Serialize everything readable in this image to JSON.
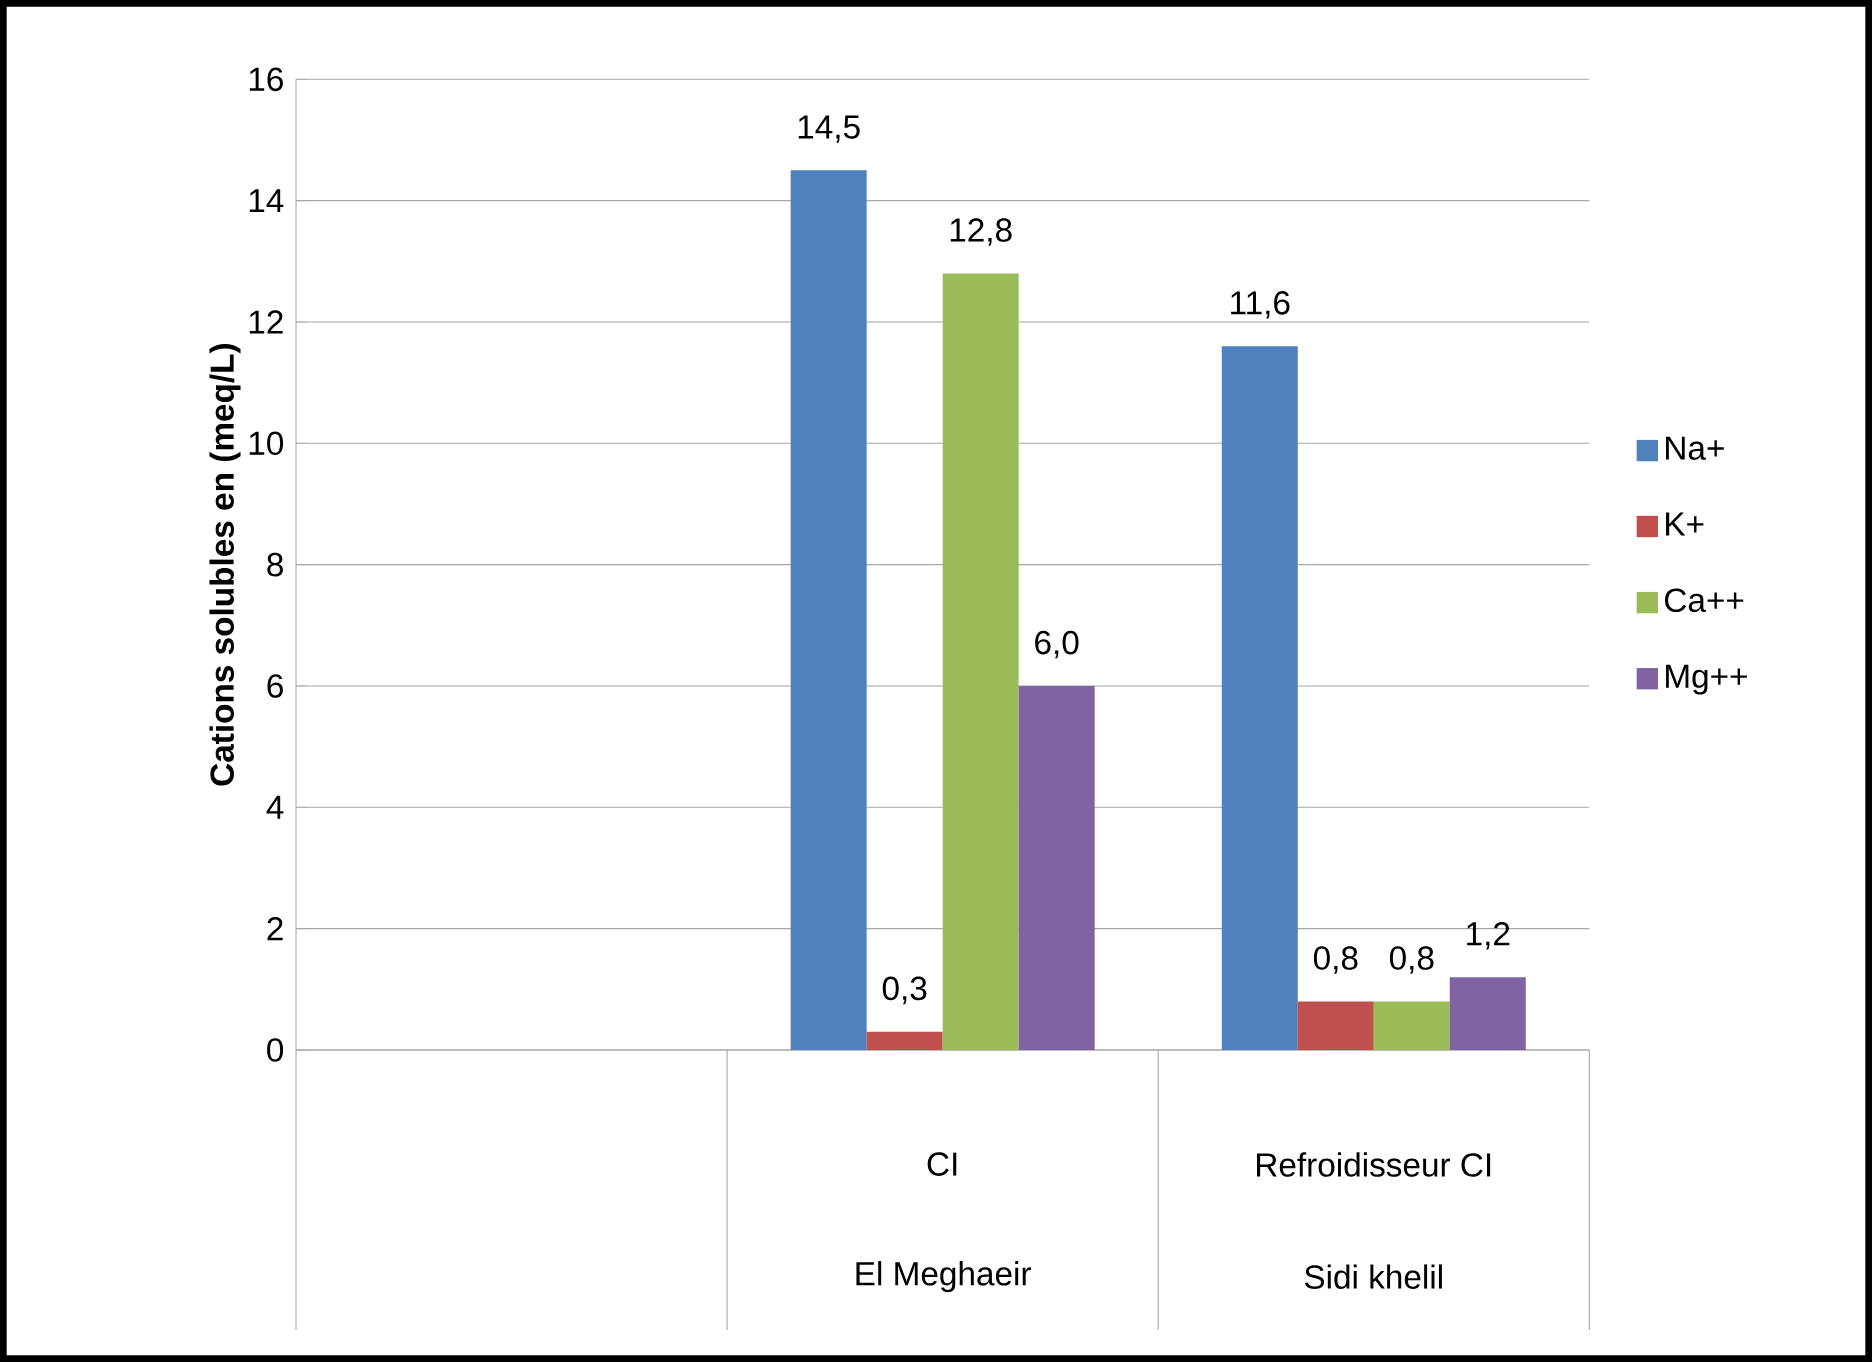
{
  "chart_data": {
    "type": "bar",
    "ylabel": "Cations solubles en (meq/L)",
    "categories": [
      null,
      "CI",
      "Refroidisseur CI"
    ],
    "annotations": [
      "El Meghaeir",
      "Sidi khelil"
    ],
    "series": [
      {
        "name": "Na+",
        "color": "#4f81bd",
        "values": [
          null,
          14.5,
          11.6
        ],
        "value_labels": [
          null,
          "14,5",
          "11,6"
        ]
      },
      {
        "name": "K+",
        "color": "#c0504d",
        "values": [
          null,
          0.3,
          0.8
        ],
        "value_labels": [
          null,
          "0,3",
          "0,8"
        ]
      },
      {
        "name": "Ca++",
        "color": "#9bbb59",
        "values": [
          null,
          12.8,
          0.8
        ],
        "value_labels": [
          null,
          "12,8",
          "0,8"
        ]
      },
      {
        "name": "Mg++",
        "color": "#8064a2",
        "values": [
          null,
          6.0,
          1.2
        ],
        "value_labels": [
          null,
          "6,0",
          "1,2"
        ]
      }
    ],
    "ylim": [
      0,
      16
    ],
    "yticks": [
      0,
      2,
      4,
      6,
      8,
      10,
      12,
      14,
      16
    ],
    "grid": "y",
    "legend": "right"
  }
}
